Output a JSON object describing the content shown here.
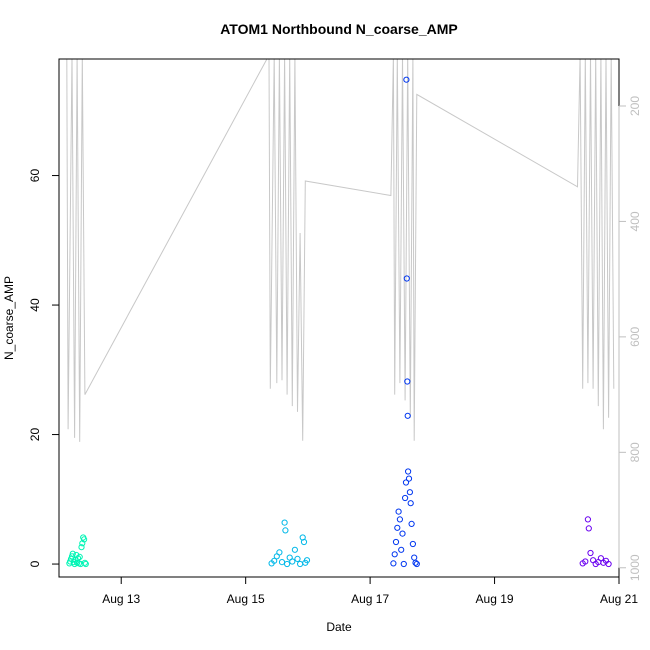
{
  "chart_data": {
    "type": "scatter",
    "title": "ATOM1 Northbound N_coarse_AMP",
    "xlabel": "Date",
    "ylabel": "N_coarse_AMP",
    "xlim": [
      "2016-08-12",
      "2016-08-21"
    ],
    "ylim": [
      -2,
      78
    ],
    "x_ticks": [
      {
        "date": "2016-08-13",
        "label": "Aug 13"
      },
      {
        "date": "2016-08-15",
        "label": "Aug 15"
      },
      {
        "date": "2016-08-17",
        "label": "Aug 17"
      },
      {
        "date": "2016-08-19",
        "label": "Aug 19"
      },
      {
        "date": "2016-08-21",
        "label": "Aug 21"
      }
    ],
    "y_ticks": [
      0,
      20,
      40,
      60
    ],
    "y2_axis": {
      "scale": "reversed",
      "color": "#bfbfbf",
      "ticks": [
        200,
        400,
        600,
        800,
        1000
      ],
      "lim": [
        118.6,
        1016
      ]
    },
    "series": [
      {
        "color": "#00f5b5",
        "points": [
          [
            "2016-08-12T04:00",
            0.1
          ],
          [
            "2016-08-12T04:20",
            0.4
          ],
          [
            "2016-08-12T04:40",
            0.8
          ],
          [
            "2016-08-12T05:00",
            1.2
          ],
          [
            "2016-08-12T05:20",
            1.6
          ],
          [
            "2016-08-12T05:40",
            0.3
          ],
          [
            "2016-08-12T06:00",
            0.0
          ],
          [
            "2016-08-12T06:20",
            0.6
          ],
          [
            "2016-08-12T06:40",
            1.4
          ],
          [
            "2016-08-12T07:00",
            0.2
          ],
          [
            "2016-08-12T07:20",
            0.9
          ],
          [
            "2016-08-12T07:40",
            0.1
          ],
          [
            "2016-08-12T08:00",
            1.1
          ],
          [
            "2016-08-12T08:20",
            0.0
          ],
          [
            "2016-08-12T08:40",
            2.6
          ],
          [
            "2016-08-12T09:00",
            3.2
          ],
          [
            "2016-08-12T09:20",
            4.1
          ],
          [
            "2016-08-12T09:40",
            3.8
          ],
          [
            "2016-08-12T10:00",
            0.2
          ],
          [
            "2016-08-12T10:20",
            0.0
          ]
        ]
      },
      {
        "color": "#00b8e8",
        "points": [
          [
            "2016-08-15T10:00",
            0.1
          ],
          [
            "2016-08-15T11:00",
            0.5
          ],
          [
            "2016-08-15T12:00",
            1.2
          ],
          [
            "2016-08-15T13:00",
            1.8
          ],
          [
            "2016-08-15T14:00",
            0.3
          ],
          [
            "2016-08-15T15:00",
            6.4
          ],
          [
            "2016-08-15T15:20",
            5.2
          ],
          [
            "2016-08-15T16:00",
            0.0
          ],
          [
            "2016-08-15T17:00",
            1.0
          ],
          [
            "2016-08-15T18:00",
            0.4
          ],
          [
            "2016-08-15T19:00",
            2.2
          ],
          [
            "2016-08-15T20:00",
            0.8
          ],
          [
            "2016-08-15T21:00",
            0.0
          ],
          [
            "2016-08-15T22:00",
            4.1
          ],
          [
            "2016-08-15T22:30",
            3.4
          ],
          [
            "2016-08-15T23:00",
            0.2
          ],
          [
            "2016-08-15T23:40",
            0.6
          ]
        ]
      },
      {
        "color": "#0036f0",
        "points": [
          [
            "2016-08-17T09:00",
            0.1
          ],
          [
            "2016-08-17T09:30",
            1.5
          ],
          [
            "2016-08-17T10:00",
            3.4
          ],
          [
            "2016-08-17T10:30",
            5.6
          ],
          [
            "2016-08-17T11:00",
            8.1
          ],
          [
            "2016-08-17T11:30",
            6.9
          ],
          [
            "2016-08-17T12:00",
            2.2
          ],
          [
            "2016-08-17T12:30",
            4.7
          ],
          [
            "2016-08-17T13:00",
            0.0
          ],
          [
            "2016-08-17T13:30",
            10.2
          ],
          [
            "2016-08-17T13:50",
            12.6
          ],
          [
            "2016-08-17T14:00",
            74.8
          ],
          [
            "2016-08-17T14:10",
            44.1
          ],
          [
            "2016-08-17T14:20",
            28.2
          ],
          [
            "2016-08-17T14:30",
            22.9
          ],
          [
            "2016-08-17T14:40",
            14.3
          ],
          [
            "2016-08-17T15:00",
            13.2
          ],
          [
            "2016-08-17T15:20",
            11.1
          ],
          [
            "2016-08-17T15:40",
            9.4
          ],
          [
            "2016-08-17T16:00",
            6.2
          ],
          [
            "2016-08-17T16:30",
            3.1
          ],
          [
            "2016-08-17T17:00",
            1.0
          ],
          [
            "2016-08-17T17:30",
            0.2
          ],
          [
            "2016-08-17T18:00",
            0.0
          ]
        ]
      },
      {
        "color": "#6a00f0",
        "points": [
          [
            "2016-08-20T10:00",
            0.1
          ],
          [
            "2016-08-20T11:00",
            0.4
          ],
          [
            "2016-08-20T12:00",
            6.9
          ],
          [
            "2016-08-20T12:20",
            5.5
          ],
          [
            "2016-08-20T13:00",
            1.7
          ],
          [
            "2016-08-20T14:00",
            0.6
          ],
          [
            "2016-08-20T15:00",
            0.0
          ],
          [
            "2016-08-20T16:00",
            0.3
          ],
          [
            "2016-08-20T17:00",
            0.9
          ],
          [
            "2016-08-20T18:00",
            0.2
          ],
          [
            "2016-08-20T19:00",
            0.5
          ],
          [
            "2016-08-20T20:00",
            0.0
          ]
        ]
      }
    ],
    "secondary_line": {
      "axis": "right",
      "color": "#c8c8c8",
      "points": [
        [
          "2016-08-12T03:00",
          112
        ],
        [
          "2016-08-12T03:30",
          760
        ],
        [
          "2016-08-12T05:00",
          112
        ],
        [
          "2016-08-12T06:00",
          775
        ],
        [
          "2016-08-12T07:00",
          112
        ],
        [
          "2016-08-12T08:00",
          782
        ],
        [
          "2016-08-12T09:00",
          112
        ],
        [
          "2016-08-12T10:00",
          700
        ],
        [
          "2016-08-15T09:00",
          112
        ],
        [
          "2016-08-15T09:30",
          690
        ],
        [
          "2016-08-15T11:00",
          112
        ],
        [
          "2016-08-15T12:00",
          680
        ],
        [
          "2016-08-15T13:00",
          112
        ],
        [
          "2016-08-15T14:00",
          675
        ],
        [
          "2016-08-15T15:00",
          112
        ],
        [
          "2016-08-15T16:00",
          700
        ],
        [
          "2016-08-15T17:00",
          112
        ],
        [
          "2016-08-15T18:00",
          720
        ],
        [
          "2016-08-15T19:00",
          112
        ],
        [
          "2016-08-15T20:00",
          730
        ],
        [
          "2016-08-15T21:00",
          420
        ],
        [
          "2016-08-15T22:00",
          780
        ],
        [
          "2016-08-15T23:00",
          330
        ],
        [
          "2016-08-17T08:00",
          355
        ],
        [
          "2016-08-17T09:00",
          112
        ],
        [
          "2016-08-17T09:30",
          700
        ],
        [
          "2016-08-17T10:30",
          112
        ],
        [
          "2016-08-17T11:30",
          680
        ],
        [
          "2016-08-17T12:30",
          112
        ],
        [
          "2016-08-17T13:30",
          710
        ],
        [
          "2016-08-17T14:30",
          112
        ],
        [
          "2016-08-17T15:30",
          740
        ],
        [
          "2016-08-17T16:30",
          112
        ],
        [
          "2016-08-17T17:00",
          780
        ],
        [
          "2016-08-17T18:00",
          180
        ],
        [
          "2016-08-20T08:00",
          340
        ],
        [
          "2016-08-20T09:00",
          112
        ],
        [
          "2016-08-20T10:00",
          690
        ],
        [
          "2016-08-20T11:00",
          112
        ],
        [
          "2016-08-20T12:00",
          680
        ],
        [
          "2016-08-20T13:00",
          112
        ],
        [
          "2016-08-20T14:00",
          690
        ],
        [
          "2016-08-20T15:00",
          112
        ],
        [
          "2016-08-20T16:00",
          720
        ],
        [
          "2016-08-20T17:00",
          112
        ],
        [
          "2016-08-20T18:00",
          760
        ],
        [
          "2016-08-20T19:00",
          112
        ],
        [
          "2016-08-20T20:00",
          740
        ],
        [
          "2016-08-20T21:00",
          112
        ],
        [
          "2016-08-20T22:00",
          690
        ]
      ]
    },
    "grid": false,
    "legend": "none"
  }
}
